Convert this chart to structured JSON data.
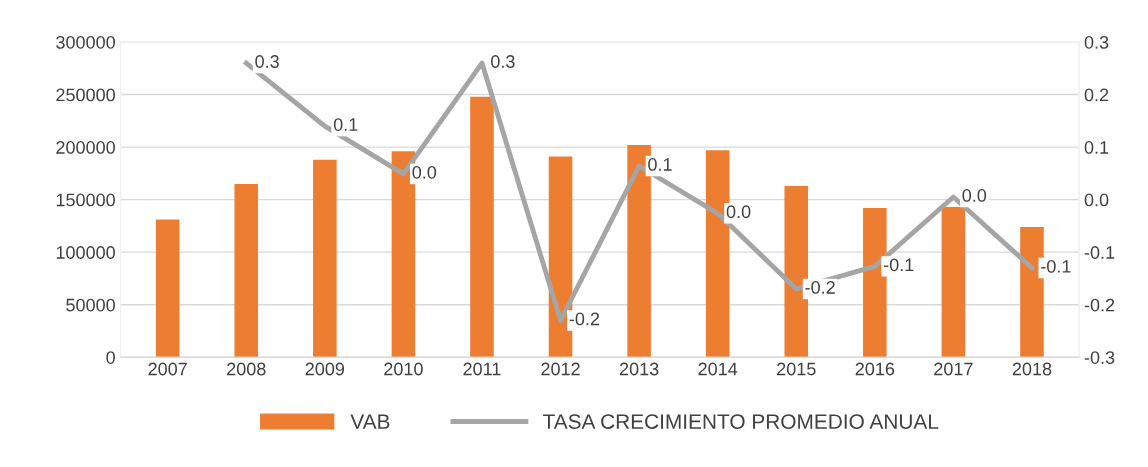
{
  "chart_data": {
    "type": "bar",
    "categories": [
      "2007",
      "2008",
      "2009",
      "2010",
      "2011",
      "2012",
      "2013",
      "2014",
      "2015",
      "2016",
      "2017",
      "2018"
    ],
    "series": [
      {
        "name": "VAB",
        "color": "#ed7d31",
        "values": [
          131000,
          165000,
          188000,
          196000,
          248000,
          191000,
          202000,
          197000,
          163000,
          142000,
          143000,
          124000
        ]
      },
      {
        "name": "TASA CRECIMIENTO PROMEDIO ANUAL",
        "type": "line",
        "axis": "y2",
        "color": "#a5a5a5",
        "values": [
          null,
          0.26,
          0.14,
          0.049,
          0.26,
          -0.23,
          0.064,
          -0.026,
          -0.17,
          -0.127,
          0.005,
          -0.13
        ],
        "value_labels": [
          null,
          "0.3",
          "0.1",
          "0.0",
          "0.3",
          "-0.2",
          "0.1",
          "0.0",
          "-0.2",
          "-0.1",
          "0.0",
          "-0.1"
        ]
      }
    ],
    "ylim": [
      0,
      300000
    ],
    "yticks": [
      0,
      50000,
      100000,
      150000,
      200000,
      250000,
      300000
    ],
    "y2lim": [
      -0.3,
      0.3
    ],
    "y2ticks": [
      -0.3,
      -0.2,
      -0.1,
      {
        "value": 0,
        "label": "0.0"
      },
      0.1,
      0.2,
      0.3
    ],
    "grid": "y",
    "legend": "bottom",
    "marker": "none",
    "line_style": "solid"
  }
}
